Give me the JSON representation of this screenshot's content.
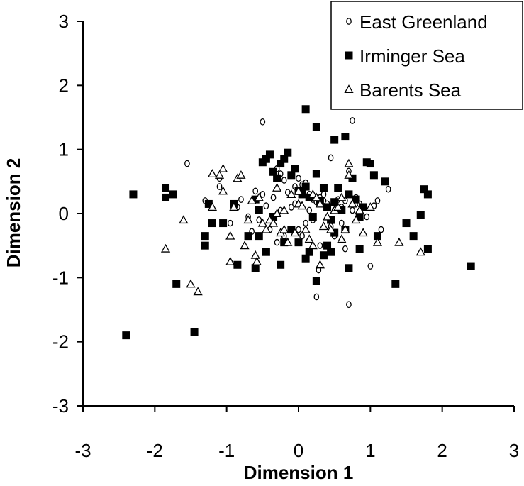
{
  "chart_data": {
    "type": "scatter",
    "xlabel": "Dimension 1",
    "ylabel": "Dimension 2",
    "xlim": [
      -3,
      3
    ],
    "ylim": [
      -3,
      3
    ],
    "xticks": [
      "-3",
      "-2",
      "-1",
      "0",
      "1",
      "2",
      "3"
    ],
    "yticks": [
      "3",
      "2",
      "1",
      "0",
      "-1",
      "-2",
      "-3"
    ],
    "grid": false,
    "legend_position": "top-right",
    "series": [
      {
        "name": "East Greenland",
        "marker": "open-circle",
        "color": "#000000",
        "points": [
          [
            -0.5,
            1.43
          ],
          [
            0.75,
            1.45
          ],
          [
            -1.55,
            0.78
          ],
          [
            -1.1,
            0.55
          ],
          [
            -1.1,
            0.42
          ],
          [
            -1.3,
            0.2
          ],
          [
            -0.95,
            -0.15
          ],
          [
            -0.85,
            0.1
          ],
          [
            -0.8,
            0.22
          ],
          [
            -0.7,
            -0.05
          ],
          [
            -0.6,
            0.35
          ],
          [
            -0.5,
            0.3
          ],
          [
            -0.45,
            0.12
          ],
          [
            -0.35,
            0.25
          ],
          [
            -0.3,
            0.7
          ],
          [
            -0.25,
            0.62
          ],
          [
            -0.2,
            0.52
          ],
          [
            -0.15,
            0.33
          ],
          [
            -0.1,
            0.1
          ],
          [
            -0.05,
            0.42
          ],
          [
            0,
            0.55
          ],
          [
            0.05,
            0.45
          ],
          [
            0.1,
            0.48
          ],
          [
            0.15,
            0.3
          ],
          [
            0.2,
            0.22
          ],
          [
            0.25,
            0.18
          ],
          [
            0.3,
            0.25
          ],
          [
            0.35,
            0.2
          ],
          [
            0.4,
            0.15
          ],
          [
            0.45,
            0.87
          ],
          [
            0.5,
            0.05
          ],
          [
            0.55,
            0.22
          ],
          [
            0.6,
            0.1
          ],
          [
            0.65,
            0.2
          ],
          [
            0.7,
            0.66
          ],
          [
            0.75,
            0.05
          ],
          [
            0.8,
            0.25
          ],
          [
            0.85,
            0.15
          ],
          [
            0.9,
            0.1
          ],
          [
            0.95,
            -0.05
          ],
          [
            1.05,
            0.12
          ],
          [
            1.1,
            0.2
          ],
          [
            1.15,
            -0.25
          ],
          [
            1.25,
            0.38
          ],
          [
            1.0,
            -0.82
          ],
          [
            0.3,
            -0.5
          ],
          [
            0.28,
            -0.88
          ],
          [
            0.25,
            -1.3
          ],
          [
            0.7,
            -1.42
          ],
          [
            -0.2,
            -0.35
          ],
          [
            -0.4,
            -0.25
          ],
          [
            -0.55,
            -0.1
          ],
          [
            -0.65,
            -0.28
          ],
          [
            0.0,
            -0.25
          ],
          [
            0.1,
            -0.15
          ],
          [
            0.2,
            -0.1
          ],
          [
            -0.3,
            -0.45
          ],
          [
            0.05,
            -0.35
          ],
          [
            0.45,
            -0.2
          ],
          [
            0.5,
            -0.35
          ],
          [
            0.6,
            -0.15
          ],
          [
            0.65,
            -0.55
          ],
          [
            -0.05,
            0.15
          ],
          [
            -0.25,
            0.05
          ],
          [
            0.15,
            0.05
          ],
          [
            0.35,
            0.3
          ]
        ]
      },
      {
        "name": "Irminger Sea",
        "marker": "filled-square",
        "color": "#000000",
        "points": [
          [
            0.1,
            1.63
          ],
          [
            0.25,
            1.35
          ],
          [
            0.5,
            1.15
          ],
          [
            0.65,
            1.2
          ],
          [
            -2.4,
            -1.9
          ],
          [
            -1.45,
            -1.85
          ],
          [
            -1.7,
            -1.1
          ],
          [
            -2.3,
            0.3
          ],
          [
            -1.85,
            0.25
          ],
          [
            -1.85,
            0.4
          ],
          [
            -1.75,
            0.3
          ],
          [
            -1.3,
            -0.35
          ],
          [
            -1.3,
            -0.5
          ],
          [
            -1.25,
            0.15
          ],
          [
            -1.2,
            -0.15
          ],
          [
            -0.85,
            -0.8
          ],
          [
            -0.6,
            -0.85
          ],
          [
            -0.55,
            -0.35
          ],
          [
            -0.5,
            0.8
          ],
          [
            -0.45,
            0.85
          ],
          [
            -0.4,
            0.92
          ],
          [
            -0.35,
            0.65
          ],
          [
            -0.3,
            0.55
          ],
          [
            -0.25,
            0.78
          ],
          [
            -0.2,
            0.85
          ],
          [
            -0.15,
            0.95
          ],
          [
            -0.1,
            0.6
          ],
          [
            -0.05,
            0.7
          ],
          [
            0,
            0.35
          ],
          [
            0.05,
            0.3
          ],
          [
            0.1,
            0.42
          ],
          [
            0.15,
            0.25
          ],
          [
            0.2,
            -0.05
          ],
          [
            0.25,
            0.62
          ],
          [
            0.3,
            0.2
          ],
          [
            0.35,
            0.4
          ],
          [
            0.4,
            0.1
          ],
          [
            0.45,
            -0.1
          ],
          [
            0.5,
            0.18
          ],
          [
            0.55,
            0.4
          ],
          [
            0.6,
            0.05
          ],
          [
            0.65,
            -0.25
          ],
          [
            0.7,
            0.3
          ],
          [
            0.75,
            0.55
          ],
          [
            0.8,
            0.22
          ],
          [
            0.85,
            -0.05
          ],
          [
            0.9,
            0.1
          ],
          [
            0.95,
            0.8
          ],
          [
            1.0,
            0.78
          ],
          [
            1.05,
            0.6
          ],
          [
            1.1,
            -0.35
          ],
          [
            1.2,
            0.5
          ],
          [
            1.5,
            -0.15
          ],
          [
            1.6,
            -0.35
          ],
          [
            1.7,
            -0.02
          ],
          [
            1.75,
            0.38
          ],
          [
            1.8,
            0.3
          ],
          [
            1.8,
            -0.55
          ],
          [
            1.35,
            -1.1
          ],
          [
            2.4,
            -0.82
          ],
          [
            -0.7,
            -0.35
          ],
          [
            -0.45,
            -0.6
          ],
          [
            -0.35,
            -0.05
          ],
          [
            -0.25,
            -0.8
          ],
          [
            -0.2,
            -0.45
          ],
          [
            -0.1,
            -0.25
          ],
          [
            0,
            -0.45
          ],
          [
            0.1,
            -0.7
          ],
          [
            0.15,
            -0.6
          ],
          [
            0.25,
            -1.05
          ],
          [
            0.35,
            -0.65
          ],
          [
            0.4,
            -0.5
          ],
          [
            0.5,
            -0.3
          ],
          [
            0.7,
            -0.85
          ],
          [
            0.85,
            -0.55
          ],
          [
            -1.05,
            -0.15
          ],
          [
            -0.9,
            0.15
          ],
          [
            -0.6,
            0.22
          ],
          [
            -0.55,
            0.05
          ],
          [
            0.45,
            -0.6
          ]
        ]
      },
      {
        "name": "Barents Sea",
        "marker": "open-triangle",
        "color": "#000000",
        "points": [
          [
            -1.85,
            -0.55
          ],
          [
            -1.6,
            -0.1
          ],
          [
            -1.5,
            -1.1
          ],
          [
            -1.4,
            -1.22
          ],
          [
            -1.2,
            0.1
          ],
          [
            -1.2,
            0.62
          ],
          [
            -1.1,
            0.6
          ],
          [
            -1.05,
            0.7
          ],
          [
            -1.05,
            0.35
          ],
          [
            -0.95,
            -0.35
          ],
          [
            -0.95,
            -0.75
          ],
          [
            -0.9,
            0.1
          ],
          [
            -0.85,
            0.55
          ],
          [
            -0.8,
            0.6
          ],
          [
            -0.75,
            -0.5
          ],
          [
            -0.7,
            -0.1
          ],
          [
            -0.65,
            0.2
          ],
          [
            -0.6,
            -0.65
          ],
          [
            -0.58,
            -0.75
          ],
          [
            -0.55,
            0.25
          ],
          [
            -0.5,
            -0.15
          ],
          [
            -0.45,
            -0.25
          ],
          [
            -0.4,
            -0.1
          ],
          [
            -0.35,
            -0.15
          ],
          [
            -0.3,
            0.0
          ],
          [
            -0.25,
            -0.3
          ],
          [
            -0.2,
            0.05
          ],
          [
            -0.15,
            -0.45
          ],
          [
            -0.1,
            0.3
          ],
          [
            -0.05,
            -0.3
          ],
          [
            0,
            0.15
          ],
          [
            0.05,
            0.12
          ],
          [
            0.1,
            -0.25
          ],
          [
            0.15,
            -0.4
          ],
          [
            0.2,
            0.3
          ],
          [
            0.25,
            0.25
          ],
          [
            0.3,
            0.15
          ],
          [
            0.35,
            -0.2
          ],
          [
            0.4,
            -0.05
          ],
          [
            0.45,
            -0.25
          ],
          [
            0.5,
            0.05
          ],
          [
            0.55,
            0.1
          ],
          [
            0.6,
            0.25
          ],
          [
            0.65,
            -0.25
          ],
          [
            0.7,
            0.78
          ],
          [
            0.7,
            0.6
          ],
          [
            0.75,
            0.15
          ],
          [
            0.8,
            -0.1
          ],
          [
            0.85,
            0.05
          ],
          [
            0.9,
            -0.3
          ],
          [
            1.0,
            0.1
          ],
          [
            1.1,
            -0.45
          ],
          [
            1.4,
            -0.45
          ],
          [
            1.7,
            -0.6
          ],
          [
            0.3,
            -0.8
          ],
          [
            0.2,
            -0.5
          ],
          [
            -0.2,
            -0.25
          ],
          [
            0.0,
            0.35
          ],
          [
            0.6,
            -0.4
          ],
          [
            -0.3,
            0.4
          ]
        ]
      }
    ]
  }
}
